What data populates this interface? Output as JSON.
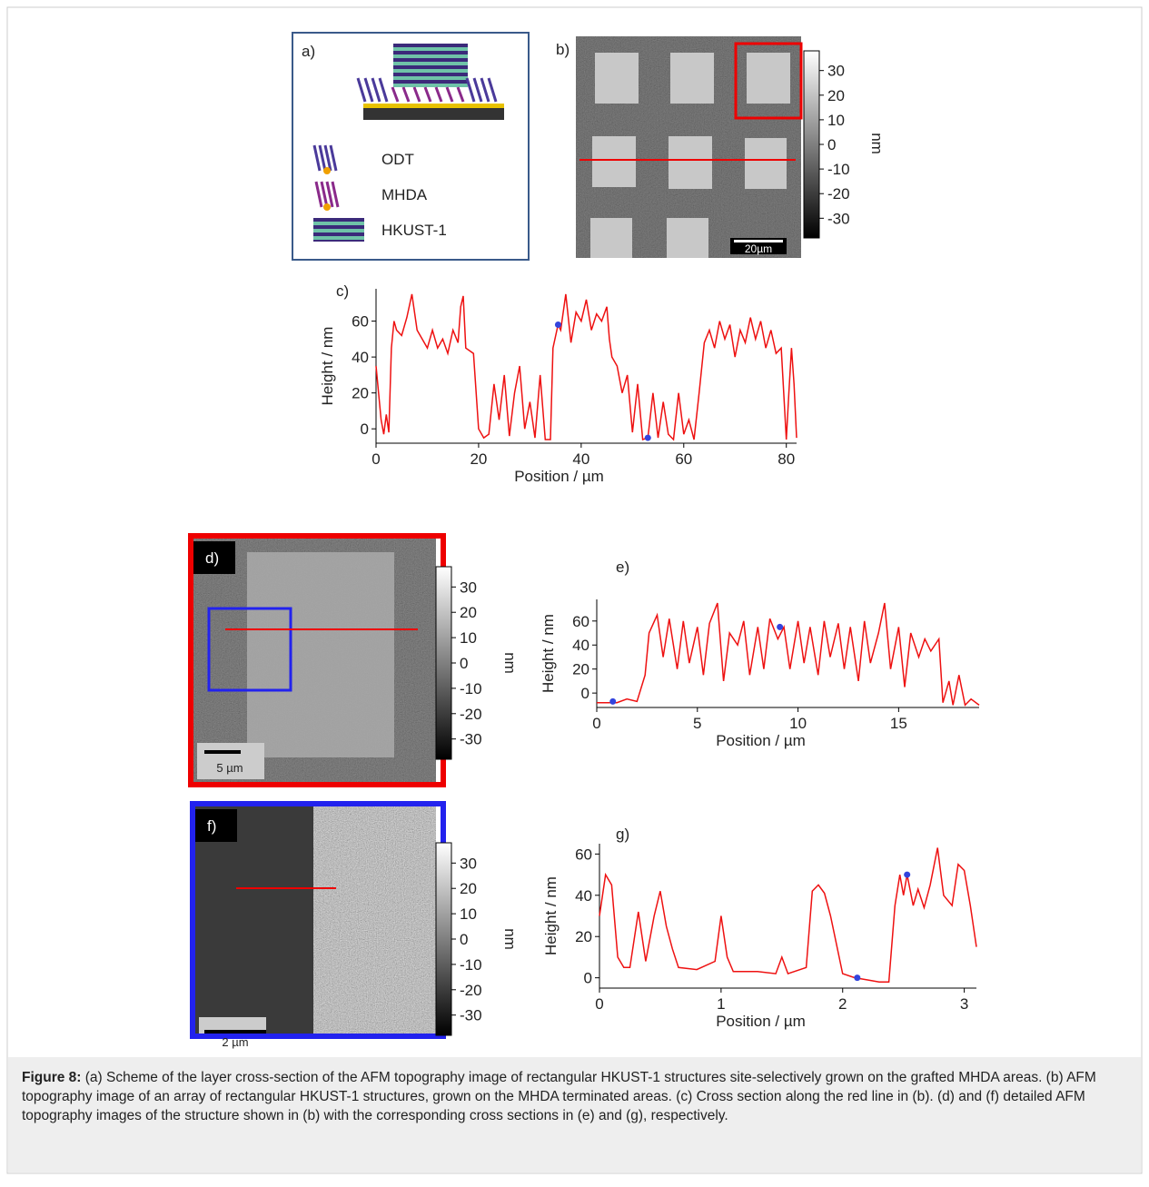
{
  "chart_data": [
    {
      "type": "line",
      "title": "c)",
      "xlabel": "Position / µm",
      "ylabel": "Height / nm",
      "xlim": [
        0,
        82
      ],
      "ylim": [
        -8,
        78
      ],
      "xticks": [
        0,
        20,
        40,
        60,
        80
      ],
      "yticks": [
        0,
        20,
        40,
        60
      ],
      "x": [
        0,
        0.5,
        1,
        1.5,
        2,
        2.5,
        3,
        3.5,
        4,
        5,
        6,
        7,
        8,
        9,
        10,
        11,
        12,
        13,
        14,
        15,
        16,
        16.5,
        17,
        17.5,
        19,
        20,
        21,
        22,
        23,
        24,
        25,
        26,
        27,
        28,
        29,
        30,
        31,
        32,
        33,
        34,
        34.5,
        35.5,
        36,
        37,
        38,
        39,
        40,
        41,
        42,
        43,
        44,
        45,
        45.5,
        46,
        47,
        48,
        49,
        50,
        51,
        52,
        53,
        54,
        55,
        56,
        57,
        58,
        59,
        60,
        61,
        62,
        63,
        64,
        65,
        66,
        67,
        68,
        69,
        70,
        71,
        72,
        73,
        74,
        75,
        76,
        77,
        78,
        79,
        80,
        80.5,
        81,
        81.5,
        82
      ],
      "series": [
        {
          "color": "#ee1111",
          "values": [
            35,
            20,
            5,
            -3,
            8,
            -2,
            45,
            60,
            55,
            52,
            62,
            75,
            55,
            50,
            45,
            55,
            45,
            50,
            42,
            55,
            48,
            68,
            74,
            45,
            42,
            0,
            -5,
            -3,
            25,
            5,
            30,
            -4,
            20,
            35,
            0,
            15,
            -5,
            30,
            -6,
            -6,
            45,
            58,
            55,
            75,
            48,
            65,
            60,
            72,
            55,
            64,
            60,
            68,
            50,
            40,
            35,
            20,
            30,
            -2,
            25,
            -6,
            -5,
            20,
            -5,
            15,
            -3,
            -6,
            20,
            -3,
            5,
            -6,
            20,
            48,
            55,
            45,
            60,
            50,
            58,
            40,
            55,
            48,
            62,
            50,
            60,
            45,
            55,
            42,
            45,
            -6,
            20,
            45,
            25,
            -5
          ]
        }
      ],
      "cursors": {
        "color": "#3344dd",
        "x": [
          35.5,
          53
        ],
        "y": [
          58,
          -5
        ]
      }
    },
    {
      "type": "line",
      "title": "e)",
      "xlabel": "Position / µm",
      "ylabel": "Height / nm",
      "xlim": [
        0,
        19
      ],
      "ylim": [
        -12,
        78
      ],
      "xticks": [
        0,
        5,
        10,
        15
      ],
      "yticks": [
        0,
        20,
        40,
        60
      ],
      "x": [
        0,
        1,
        1.5,
        2,
        2.4,
        2.6,
        3,
        3.3,
        3.6,
        4,
        4.3,
        4.6,
        5,
        5.3,
        5.6,
        6,
        6.3,
        6.6,
        7,
        7.3,
        7.6,
        8,
        8.3,
        8.6,
        9,
        9.3,
        9.6,
        10,
        10.3,
        10.6,
        11,
        11.3,
        11.6,
        12,
        12.3,
        12.6,
        13,
        13.3,
        13.6,
        14,
        14.3,
        14.6,
        15,
        15.3,
        15.6,
        16,
        16.3,
        16.6,
        17,
        17.2,
        17.5,
        17.7,
        18,
        18.3,
        18.6,
        19
      ],
      "series": [
        {
          "color": "#ee1111",
          "values": [
            -8,
            -8,
            -5,
            -7,
            15,
            50,
            65,
            30,
            62,
            20,
            60,
            25,
            55,
            15,
            58,
            75,
            10,
            50,
            40,
            60,
            15,
            55,
            20,
            62,
            45,
            55,
            20,
            60,
            25,
            55,
            15,
            60,
            30,
            58,
            20,
            55,
            10,
            60,
            25,
            50,
            75,
            20,
            55,
            5,
            50,
            30,
            45,
            35,
            45,
            -8,
            10,
            -10,
            15,
            -10,
            -5,
            -10
          ]
        }
      ],
      "cursors": {
        "color": "#3344dd",
        "x": [
          0.8,
          9.1
        ],
        "y": [
          -7,
          55
        ]
      }
    },
    {
      "type": "line",
      "title": "g)",
      "xlabel": "Position / µm",
      "ylabel": "Height / nm",
      "xlim": [
        0,
        3.1
      ],
      "ylim": [
        -5,
        65
      ],
      "xticks": [
        0,
        1,
        2,
        3
      ],
      "yticks": [
        0,
        20,
        40,
        60
      ],
      "x": [
        0,
        0.05,
        0.1,
        0.15,
        0.2,
        0.25,
        0.32,
        0.38,
        0.45,
        0.5,
        0.55,
        0.6,
        0.65,
        0.8,
        0.95,
        1,
        1.05,
        1.1,
        1.3,
        1.45,
        1.5,
        1.55,
        1.7,
        1.75,
        1.8,
        1.85,
        1.9,
        2,
        2.1,
        2.2,
        2.3,
        2.38,
        2.43,
        2.47,
        2.5,
        2.53,
        2.58,
        2.62,
        2.67,
        2.72,
        2.78,
        2.83,
        2.9,
        2.95,
        3,
        3.05,
        3.1
      ],
      "series": [
        {
          "color": "#ee1111",
          "values": [
            30,
            50,
            45,
            10,
            5,
            5,
            32,
            8,
            30,
            42,
            25,
            14,
            5,
            4,
            8,
            30,
            10,
            3,
            3,
            2,
            10,
            2,
            5,
            42,
            45,
            41,
            30,
            2,
            0,
            -1,
            -2,
            -2,
            35,
            50,
            40,
            50,
            35,
            43,
            34,
            45,
            63,
            40,
            35,
            55,
            52,
            35,
            15
          ]
        }
      ],
      "cursors": {
        "color": "#3344dd",
        "x": [
          2.12,
          2.53
        ],
        "y": [
          0,
          50
        ]
      }
    }
  ],
  "scheme": {
    "label": "a)",
    "legend": [
      "ODT",
      "MHDA",
      "HKUST-1"
    ]
  },
  "images": [
    {
      "label": "b)",
      "colorbar_lim": [
        -38,
        38
      ],
      "colorbar_ticks": [
        30,
        20,
        10,
        0,
        -10,
        -20,
        -30
      ],
      "unit": "nm",
      "scale_bar": "20µm"
    },
    {
      "label": "d)",
      "colorbar_lim": [
        -38,
        38
      ],
      "colorbar_ticks": [
        30,
        20,
        10,
        0,
        -10,
        -20,
        -30
      ],
      "unit": "nm",
      "scale_bar": "5 µm"
    },
    {
      "label": "f)",
      "colorbar_lim": [
        -38,
        38
      ],
      "colorbar_ticks": [
        30,
        20,
        10,
        0,
        -10,
        -20,
        -30
      ],
      "unit": "nm",
      "scale_bar": "2 µm"
    }
  ],
  "caption": {
    "label": "Figure 8:",
    "text": "(a) Scheme of the layer cross-section of the AFM topography image of rectangular HKUST-1 structures site-selectively grown on the grafted MHDA areas. (b) AFM topography image of an array of rectangular HKUST-1 structures, grown on the MHDA terminated areas. (c) Cross section along the red line in (b). (d) and (f) detailed AFM topography images of the structure shown in (b) with the corresponding cross sections in (e) and (g), respectively."
  }
}
